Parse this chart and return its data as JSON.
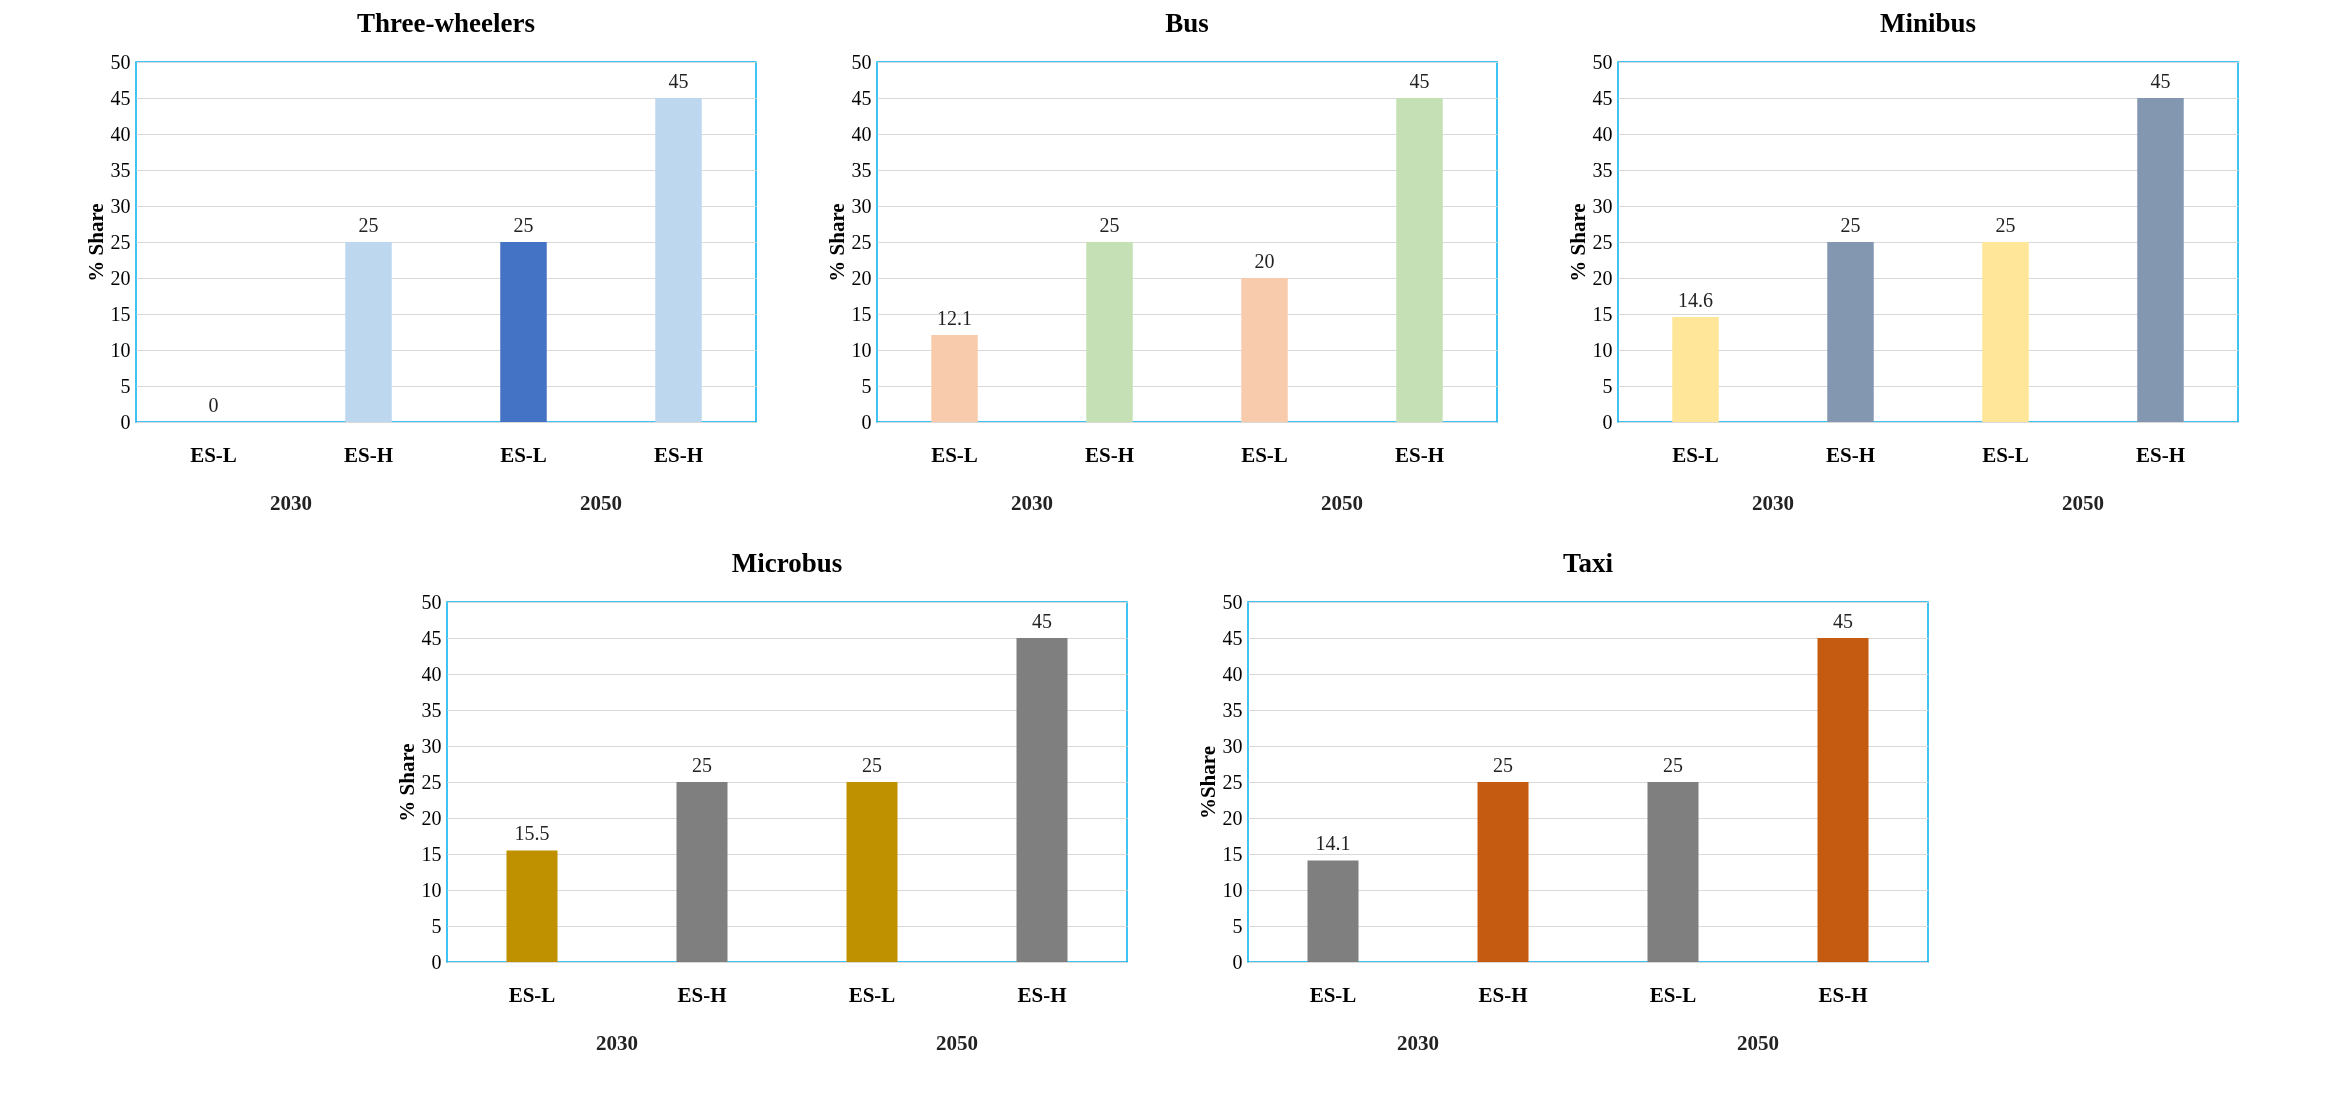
{
  "chart_data": [
    {
      "type": "bar",
      "title": "Three-wheelers",
      "ylabel": "% Share",
      "categories": [
        "ES-L",
        "ES-H",
        "ES-L",
        "ES-H"
      ],
      "values": [
        0,
        25,
        25,
        45
      ],
      "colors": [
        "#bdd7ee",
        "#bdd7ee",
        "#4472c4",
        "#bdd7ee"
      ],
      "ylim": [
        0,
        50
      ],
      "yticks": [
        0,
        5,
        10,
        15,
        20,
        25,
        30,
        35,
        40,
        45,
        50
      ],
      "grid": "y",
      "data_labels": true,
      "annotations": [
        "2030",
        "2050"
      ]
    },
    {
      "type": "bar",
      "title": "Bus",
      "ylabel": "% Share",
      "categories": [
        "ES-L",
        "ES-H",
        "ES-L",
        "ES-H"
      ],
      "values": [
        12.1,
        25,
        20,
        45
      ],
      "colors": [
        "#f8cbad",
        "#c5e0b4",
        "#f8cbad",
        "#c5e0b4"
      ],
      "ylim": [
        0,
        50
      ],
      "yticks": [
        0,
        5,
        10,
        15,
        20,
        25,
        30,
        35,
        40,
        45,
        50
      ],
      "grid": "y",
      "data_labels": true,
      "annotations": [
        "2030",
        "2050"
      ]
    },
    {
      "type": "bar",
      "title": "Minibus",
      "ylabel": "% Share",
      "categories": [
        "ES-L",
        "ES-H",
        "ES-L",
        "ES-H"
      ],
      "values": [
        14.6,
        25,
        25,
        45
      ],
      "colors": [
        "#ffe699",
        "#8497b0",
        "#ffe699",
        "#8497b0"
      ],
      "ylim": [
        0,
        50
      ],
      "yticks": [
        0,
        5,
        10,
        15,
        20,
        25,
        30,
        35,
        40,
        45,
        50
      ],
      "grid": "y",
      "data_labels": true,
      "annotations": [
        "2030",
        "2050"
      ]
    },
    {
      "type": "bar",
      "title": "Microbus",
      "ylabel": "% Share",
      "categories": [
        "ES-L",
        "ES-H",
        "ES-L",
        "ES-H"
      ],
      "values": [
        15.5,
        25,
        25,
        45
      ],
      "colors": [
        "#bf9000",
        "#7f7f7f",
        "#bf9000",
        "#7f7f7f"
      ],
      "ylim": [
        0,
        50
      ],
      "yticks": [
        0,
        5,
        10,
        15,
        20,
        25,
        30,
        35,
        40,
        45,
        50
      ],
      "grid": "y",
      "data_labels": true,
      "annotations": [
        "2030",
        "2050"
      ]
    },
    {
      "type": "bar",
      "title": "Taxi",
      "ylabel": "%Share",
      "categories": [
        "ES-L",
        "ES-H",
        "ES-L",
        "ES-H"
      ],
      "values": [
        14.1,
        25,
        25,
        45
      ],
      "colors": [
        "#7f7f7f",
        "#c55a11",
        "#7f7f7f",
        "#c55a11"
      ],
      "ylim": [
        0,
        50
      ],
      "yticks": [
        0,
        5,
        10,
        15,
        20,
        25,
        30,
        35,
        40,
        45,
        50
      ],
      "grid": "y",
      "data_labels": true,
      "annotations": [
        "2030",
        "2050"
      ]
    }
  ]
}
